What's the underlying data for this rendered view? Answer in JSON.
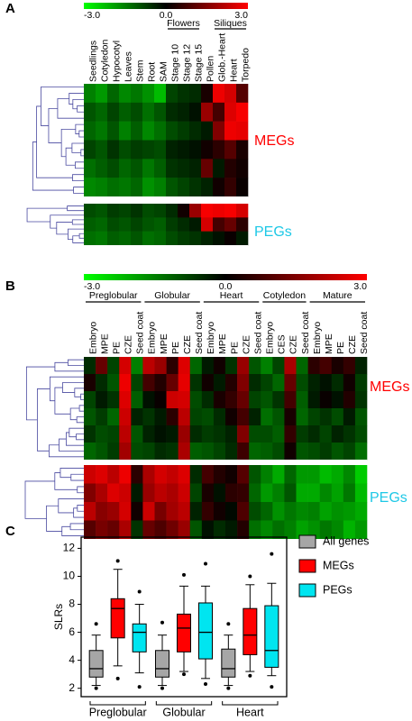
{
  "chart_data": [
    {
      "type": "heatmap",
      "panel": "A",
      "colors": [
        "#00ff00",
        "#000000",
        "#ff0000"
      ],
      "zlim": [
        -3,
        3
      ],
      "colorbar_ticks": [
        {
          "value": -3,
          "label": "-3.0"
        },
        {
          "value": 0,
          "label": "0.0"
        },
        {
          "value": 3,
          "label": "3.0"
        }
      ],
      "columns": [
        "Seedlings",
        "Cotyledon",
        "Hypocotyl",
        "Leaves",
        "Stem",
        "Root",
        "SAM",
        "Stage 10",
        "Stage 12",
        "Stage 15",
        "Pollen",
        "Glob.-Heart",
        "Heart",
        "Torpedo"
      ],
      "groups": [
        {
          "label": "Flowers",
          "start": 7,
          "end": 9
        },
        {
          "label": "Siliques",
          "start": 11,
          "end": 13
        }
      ],
      "blocks": [
        {
          "name": "MEGs",
          "color": "#ff0000",
          "values": [
            [
              -1.5,
              -1.8,
              -1.2,
              -1.6,
              -1.4,
              -1.7,
              -2.2,
              -0.8,
              -0.6,
              -0.5,
              0.3,
              2.8,
              2.5,
              1.0
            ],
            [
              -1.0,
              -1.2,
              -0.8,
              -1.1,
              -0.9,
              -1.3,
              -1.0,
              -0.5,
              -0.4,
              -0.2,
              1.8,
              0.8,
              2.6,
              2.9
            ],
            [
              -1.2,
              -1.4,
              -1.0,
              -1.5,
              -1.1,
              -1.6,
              -1.3,
              -0.9,
              -0.7,
              -0.5,
              -0.3,
              1.5,
              2.8,
              2.7
            ],
            [
              -0.8,
              -1.0,
              -0.6,
              -0.9,
              -0.7,
              -0.8,
              -0.9,
              -0.4,
              -0.3,
              -0.2,
              0.2,
              0.5,
              1.0,
              0.3
            ],
            [
              -1.3,
              -1.1,
              -0.9,
              -1.2,
              -1.0,
              -1.4,
              -1.1,
              -0.6,
              -0.5,
              -0.4,
              1.2,
              -0.3,
              0.4,
              0.2
            ],
            [
              -1.6,
              -1.5,
              -1.3,
              -1.4,
              -1.2,
              -1.7,
              -1.5,
              -1.0,
              -0.8,
              -0.6,
              -0.4,
              0.2,
              0.6,
              0.1
            ]
          ]
        },
        {
          "name": "PEGs",
          "color": "#1ec8e6",
          "values": [
            [
              -0.9,
              -1.0,
              -0.7,
              -0.8,
              -0.6,
              -0.9,
              -0.8,
              -0.5,
              0.2,
              1.8,
              2.9,
              2.8,
              2.9,
              2.5
            ],
            [
              -1.1,
              -1.2,
              -0.9,
              -1.0,
              -0.8,
              -1.0,
              -1.1,
              -0.7,
              -0.5,
              -0.3,
              2.5,
              0.8,
              1.2,
              0.5
            ],
            [
              -1.3,
              -1.4,
              -1.1,
              -1.2,
              -1.0,
              -1.3,
              -1.2,
              -0.9,
              -0.7,
              -0.6,
              -0.4,
              -0.2,
              0.1,
              -0.3
            ]
          ]
        }
      ]
    },
    {
      "type": "heatmap",
      "panel": "B",
      "colors": [
        "#00ff00",
        "#000000",
        "#ff0000"
      ],
      "zlim": [
        -3,
        3
      ],
      "colorbar_ticks": [
        {
          "value": -3,
          "label": "-3.0"
        },
        {
          "value": 0,
          "label": "0.0"
        },
        {
          "value": 3,
          "label": "3.0"
        }
      ],
      "columns": [
        "Embryo",
        "MPE",
        "PE",
        "CZE",
        "Seed coat",
        "Embryo",
        "MPE",
        "PE",
        "CZE",
        "Seed coat",
        "Embryo",
        "MPE",
        "PE",
        "CZE",
        "Seed coat",
        "Embryo",
        "CES",
        "CZE",
        "Seed coat",
        "Embryo",
        "MPE",
        "PE",
        "CZE",
        "Seed coat"
      ],
      "groups": [
        {
          "label": "Preglobular",
          "start": 0,
          "end": 4
        },
        {
          "label": "Globular",
          "start": 5,
          "end": 9
        },
        {
          "label": "Heart",
          "start": 10,
          "end": 14
        },
        {
          "label": "Cotyledon",
          "start": 15,
          "end": 18
        },
        {
          "label": "Mature",
          "start": 19,
          "end": 23
        }
      ],
      "blocks": [
        {
          "name": "MEGs",
          "color": "#ff0000",
          "values": [
            [
              -0.5,
              1.2,
              -0.8,
              2.5,
              -1.5,
              2.2,
              1.8,
              0.5,
              2.6,
              -1.2,
              -0.3,
              0.2,
              -0.6,
              1.8,
              -1.0,
              -1.5,
              -0.8,
              2.0,
              -1.2,
              0.5,
              0.8,
              0.3,
              0.6,
              -0.4
            ],
            [
              0.3,
              -0.5,
              -1.0,
              2.8,
              -0.8,
              0.8,
              0.4,
              1.2,
              2.7,
              -0.6,
              0.2,
              -0.3,
              0.4,
              1.5,
              -0.5,
              -0.8,
              -1.2,
              1.2,
              -0.9,
              -0.4,
              -0.2,
              -0.5,
              0.2,
              -0.7
            ],
            [
              -0.8,
              -0.3,
              -0.6,
              2.6,
              -1.1,
              -0.2,
              0.1,
              2.4,
              2.5,
              -0.9,
              -0.5,
              0.3,
              0.6,
              1.2,
              -0.8,
              -1.0,
              -0.6,
              0.8,
              -1.1,
              -0.3,
              0.1,
              -0.2,
              0.4,
              -0.6
            ],
            [
              -1.0,
              -0.7,
              -1.2,
              2.4,
              -0.4,
              -0.6,
              -0.3,
              0.5,
              2.2,
              -0.8,
              -0.9,
              -0.5,
              0.2,
              0.8,
              -0.4,
              -1.3,
              -1.0,
              0.3,
              -1.2,
              -0.8,
              -0.6,
              -0.9,
              -0.3,
              -1.0
            ],
            [
              -0.6,
              -0.9,
              -0.8,
              2.2,
              -1.0,
              -0.4,
              -0.2,
              -0.3,
              1.8,
              -0.5,
              -0.7,
              -0.6,
              -0.4,
              1.5,
              -0.9,
              -0.9,
              -1.1,
              0.6,
              -0.7,
              -0.5,
              -0.8,
              -0.4,
              -0.6,
              -0.9
            ],
            [
              -1.2,
              -1.0,
              -0.7,
              1.9,
              -0.9,
              -0.8,
              -0.5,
              -0.6,
              2.0,
              -1.1,
              -1.0,
              -0.8,
              -0.5,
              0.7,
              -1.2,
              -1.1,
              -0.9,
              0.2,
              -1.0,
              -0.9,
              -0.7,
              -1.0,
              -0.8,
              -1.3
            ]
          ]
        },
        {
          "name": "PEGs",
          "color": "#1ec8e6",
          "values": [
            [
              2.4,
              2.6,
              2.2,
              2.8,
              0.5,
              2.0,
              2.5,
              2.3,
              2.6,
              -0.5,
              0.8,
              0.4,
              0.2,
              1.0,
              -1.0,
              -1.5,
              -2.0,
              -1.2,
              -1.8,
              -1.8,
              -2.2,
              -2.0,
              -1.6,
              -2.4
            ],
            [
              1.5,
              2.0,
              2.6,
              2.4,
              -0.3,
              1.8,
              2.2,
              2.0,
              2.4,
              -0.8,
              0.3,
              -0.2,
              0.5,
              0.6,
              -1.2,
              -1.8,
              -1.5,
              -1.0,
              -2.0,
              -2.0,
              -1.6,
              -1.9,
              -1.4,
              -2.2
            ],
            [
              2.2,
              1.6,
              1.8,
              2.5,
              0.2,
              2.4,
              1.4,
              1.9,
              2.2,
              -0.4,
              0.6,
              0.2,
              -0.1,
              0.9,
              -0.9,
              -1.2,
              -1.7,
              -1.4,
              -1.6,
              -1.5,
              -1.9,
              -1.7,
              -1.8,
              -2.0
            ],
            [
              1.0,
              1.4,
              1.2,
              2.0,
              -0.6,
              1.2,
              0.9,
              1.3,
              1.8,
              -1.0,
              -0.2,
              -0.5,
              -0.3,
              0.4,
              -1.3,
              -1.6,
              -1.3,
              -1.5,
              -1.9,
              -1.7,
              -1.4,
              -1.6,
              -2.1,
              -1.8
            ]
          ]
        }
      ]
    },
    {
      "type": "box",
      "panel": "C",
      "y_label": "SLRs",
      "categories": [
        "Preglobular",
        "Globular",
        "Heart"
      ],
      "ylim": [
        1.4,
        12.8
      ],
      "yticks": [
        2,
        4,
        6,
        8,
        10,
        12
      ],
      "series": [
        {
          "name": "All genes",
          "color": "#a6a6a6",
          "stats": [
            {
              "whislo": 2.2,
              "q1": 2.8,
              "med": 3.4,
              "q3": 4.7,
              "whishi": 5.8,
              "fliers": [
                6.6,
                2.0
              ]
            },
            {
              "whislo": 2.2,
              "q1": 2.8,
              "med": 3.4,
              "q3": 4.7,
              "whishi": 5.8,
              "fliers": [
                6.7,
                2.0
              ]
            },
            {
              "whislo": 2.2,
              "q1": 2.8,
              "med": 3.4,
              "q3": 4.8,
              "whishi": 5.8,
              "fliers": [
                6.6,
                2.0
              ]
            }
          ]
        },
        {
          "name": "MEGs",
          "color": "#ff0000",
          "stats": [
            {
              "whislo": 3.6,
              "q1": 5.6,
              "med": 7.7,
              "q3": 8.4,
              "whishi": 10.5,
              "fliers": [
                11.1,
                2.7
              ]
            },
            {
              "whislo": 3.2,
              "q1": 4.6,
              "med": 6.3,
              "q3": 7.3,
              "whishi": 9.3,
              "fliers": [
                10.1,
                3.0
              ]
            },
            {
              "whislo": 3.2,
              "q1": 4.4,
              "med": 5.8,
              "q3": 7.7,
              "whishi": 9.4,
              "fliers": [
                10.0,
                2.9
              ]
            }
          ]
        },
        {
          "name": "PEGs",
          "color": "#00e5f0",
          "stats": [
            {
              "whislo": 3.1,
              "q1": 4.6,
              "med": 6.0,
              "q3": 6.6,
              "whishi": 8.0,
              "fliers": [
                8.9,
                2.1
              ]
            },
            {
              "whislo": 2.7,
              "q1": 4.1,
              "med": 6.0,
              "q3": 8.1,
              "whishi": 9.3,
              "fliers": [
                10.9,
                2.3
              ]
            },
            {
              "whislo": 2.9,
              "q1": 3.5,
              "med": 4.7,
              "q3": 7.9,
              "whishi": 9.5,
              "fliers": [
                11.6,
                2.1
              ]
            }
          ]
        }
      ]
    }
  ]
}
